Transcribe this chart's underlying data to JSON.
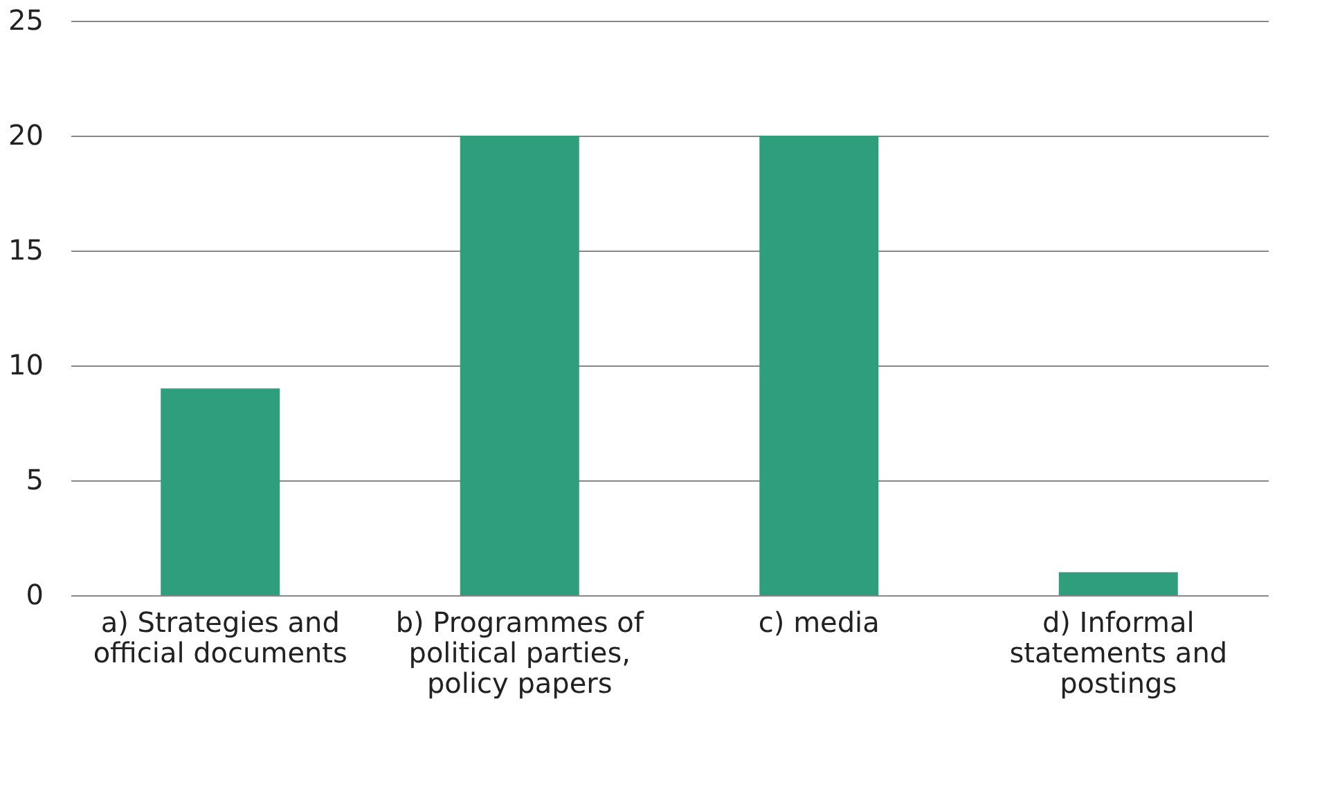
{
  "chart_data": {
    "type": "bar",
    "categories": [
      "a) Strategies and official documents",
      "b) Programmes of political parties, policy papers",
      "c) media",
      "d) Informal statements and postings"
    ],
    "values": [
      9,
      20,
      20,
      1
    ],
    "color": "#2e9e7c",
    "ylim": [
      0,
      25
    ],
    "yticks": [
      0,
      5,
      10,
      15,
      20,
      25
    ],
    "grid": "y"
  }
}
